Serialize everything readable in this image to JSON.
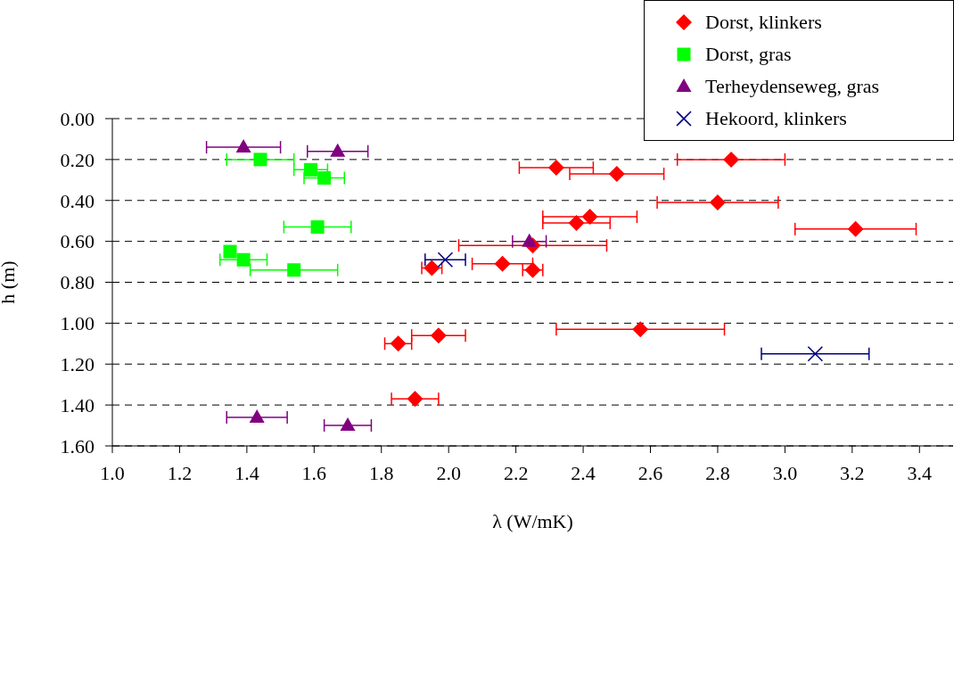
{
  "chart_data": {
    "type": "scatter",
    "xlabel": "λ (W/mK)",
    "ylabel": "h (m)",
    "xlim": [
      1.0,
      3.5
    ],
    "xticks": [
      {
        "value": 1.0,
        "label": "1.0"
      },
      {
        "value": 1.2,
        "label": "1.2"
      },
      {
        "value": 1.4,
        "label": "1.4"
      },
      {
        "value": 1.6,
        "label": "1.6"
      },
      {
        "value": 1.8,
        "label": "1.8"
      },
      {
        "value": 2.0,
        "label": "2.0"
      },
      {
        "value": 2.2,
        "label": "2.2"
      },
      {
        "value": 2.4,
        "label": "2.4"
      },
      {
        "value": 2.6,
        "label": "2.6"
      },
      {
        "value": 2.8,
        "label": "2.8"
      },
      {
        "value": 3.0,
        "label": "3.0"
      },
      {
        "value": 3.2,
        "label": "3.2"
      },
      {
        "value": 3.4,
        "label": "3.4"
      }
    ],
    "ylim": [
      1.6,
      0
    ],
    "yticks": [
      {
        "value": 0,
        "label": "0.00"
      },
      {
        "value": 0.2,
        "label": "0.20"
      },
      {
        "value": 0.4,
        "label": "0.40"
      },
      {
        "value": 0.6,
        "label": "0.60"
      },
      {
        "value": 0.8,
        "label": "0.80"
      },
      {
        "value": 1.0,
        "label": "1.00"
      },
      {
        "value": 1.2,
        "label": "1.20"
      },
      {
        "value": 1.4,
        "label": "1.40"
      },
      {
        "value": 1.6,
        "label": "1.60"
      }
    ],
    "grid": "y",
    "legend": "top right",
    "series": [
      {
        "name": "Dorst, klinkers",
        "color": "#ff0000",
        "marker": "diamond",
        "x": [
          2.84,
          2.32,
          2.5,
          2.8,
          2.42,
          2.38,
          3.21,
          2.25,
          2.16,
          1.95,
          2.25,
          2.57,
          1.97,
          1.85,
          1.9
        ],
        "values": [
          0.2,
          0.24,
          0.27,
          0.41,
          0.48,
          0.51,
          0.54,
          0.62,
          0.71,
          0.73,
          0.74,
          1.03,
          1.06,
          1.1,
          1.37
        ],
        "xerrors": [
          0.16,
          0.11,
          0.14,
          0.18,
          0.14,
          0.1,
          0.18,
          0.22,
          0.09,
          0.03,
          0.03,
          0.25,
          0.08,
          0.04,
          0.07
        ]
      },
      {
        "name": "Dorst, gras",
        "color": "#00ff00",
        "marker": "square",
        "x": [
          1.44,
          1.59,
          1.63,
          1.61,
          1.35,
          1.39,
          1.54
        ],
        "values": [
          0.2,
          0.25,
          0.29,
          0.53,
          0.65,
          0.69,
          0.74
        ],
        "xerrors": [
          0.1,
          0.05,
          0.06,
          0.1,
          null,
          0.07,
          0.13
        ]
      },
      {
        "name": "Terheydenseweg, gras",
        "color": "#800080",
        "marker": "triangle",
        "x": [
          1.39,
          1.67,
          2.24,
          1.43,
          1.7
        ],
        "values": [
          0.14,
          0.16,
          0.6,
          1.46,
          1.5
        ],
        "xerrors": [
          0.11,
          0.09,
          0.05,
          0.09,
          0.07
        ]
      },
      {
        "name": "Hekoord, klinkers",
        "color": "#000080",
        "marker": "cross",
        "x": [
          1.99,
          3.09
        ],
        "values": [
          0.69,
          1.15
        ],
        "xerrors": [
          0.06,
          0.16
        ]
      }
    ]
  }
}
